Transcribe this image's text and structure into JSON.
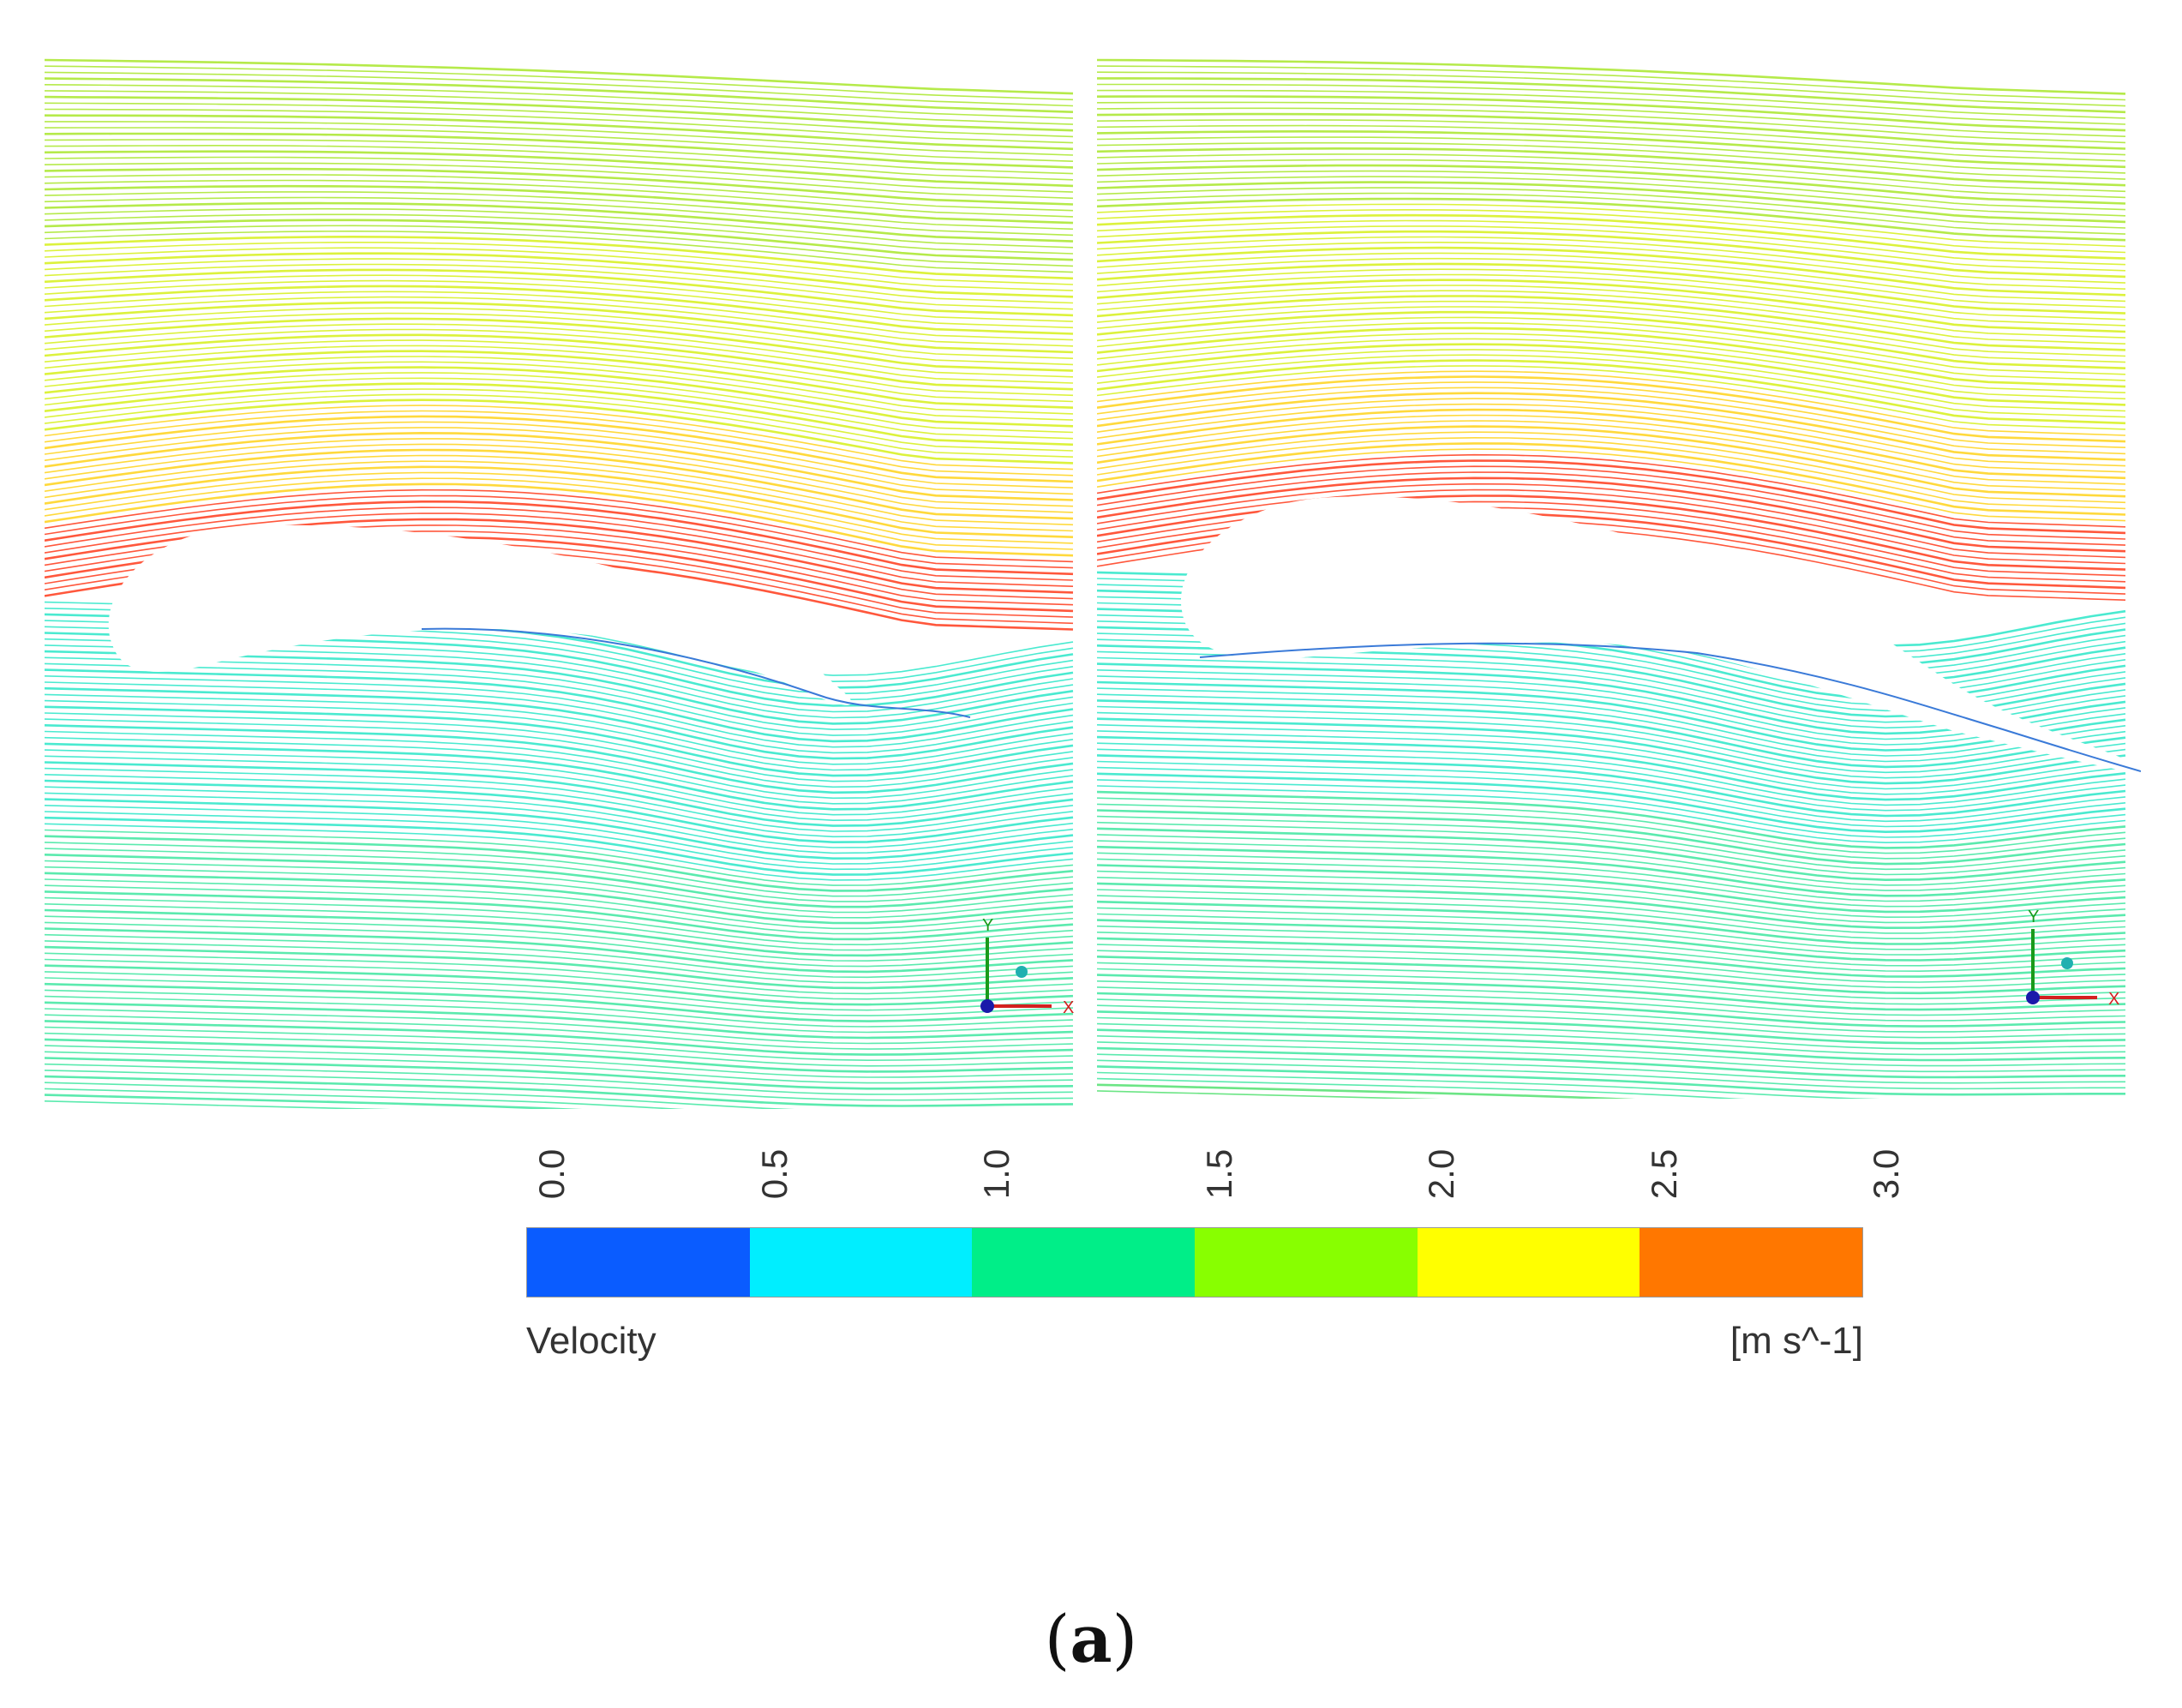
{
  "figure": {
    "caption_open": "(",
    "caption_letter": "a",
    "caption_close": ")"
  },
  "panels": [
    {
      "id": "left",
      "axis_y_label": "Y",
      "axis_x_label": "X"
    },
    {
      "id": "right",
      "axis_y_label": "Y",
      "axis_x_label": "X"
    }
  ],
  "legend": {
    "title": "Velocity",
    "unit": "[m s^-1]",
    "ticks": [
      "0.0",
      "0.5",
      "1.0",
      "1.5",
      "2.0",
      "2.5",
      "3.0"
    ],
    "colors": [
      "#0a5cff",
      "#00eeff",
      "#00ee88",
      "#88ff00",
      "#ffff00",
      "#ff7700"
    ]
  }
}
